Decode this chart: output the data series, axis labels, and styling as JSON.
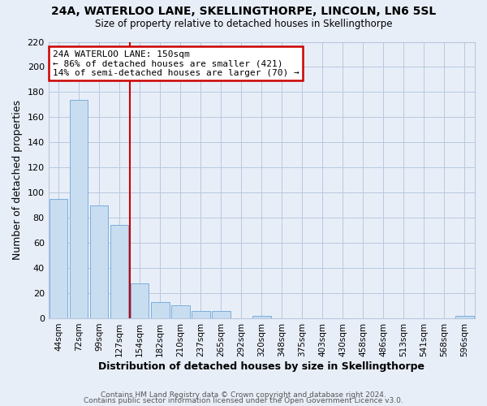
{
  "title": "24A, WATERLOO LANE, SKELLINGTHORPE, LINCOLN, LN6 5SL",
  "subtitle": "Size of property relative to detached houses in Skellingthorpe",
  "xlabel": "Distribution of detached houses by size in Skellingthorpe",
  "ylabel": "Number of detached properties",
  "bar_color": "#c8ddf0",
  "bar_edge_color": "#7aaedc",
  "vline_color": "#cc0000",
  "annotation_title": "24A WATERLOO LANE: 150sqm",
  "annotation_line1": "← 86% of detached houses are smaller (421)",
  "annotation_line2": "14% of semi-detached houses are larger (70) →",
  "annotation_box_color": "#ffffff",
  "annotation_box_edge": "#cc0000",
  "categories": [
    "44sqm",
    "72sqm",
    "99sqm",
    "127sqm",
    "154sqm",
    "182sqm",
    "210sqm",
    "237sqm",
    "265sqm",
    "292sqm",
    "320sqm",
    "348sqm",
    "375sqm",
    "403sqm",
    "430sqm",
    "458sqm",
    "486sqm",
    "513sqm",
    "541sqm",
    "568sqm",
    "596sqm"
  ],
  "values": [
    95,
    174,
    90,
    74,
    28,
    13,
    10,
    6,
    6,
    0,
    2,
    0,
    0,
    0,
    0,
    0,
    0,
    0,
    0,
    0,
    2
  ],
  "ylim": [
    0,
    220
  ],
  "yticks": [
    0,
    20,
    40,
    60,
    80,
    100,
    120,
    140,
    160,
    180,
    200,
    220
  ],
  "footer1": "Contains HM Land Registry data © Crown copyright and database right 2024.",
  "footer2": "Contains public sector information licensed under the Open Government Licence v3.0.",
  "background_color": "#e8eef8",
  "grid_color": "#b8c8e0",
  "vline_xindex": 3.5
}
